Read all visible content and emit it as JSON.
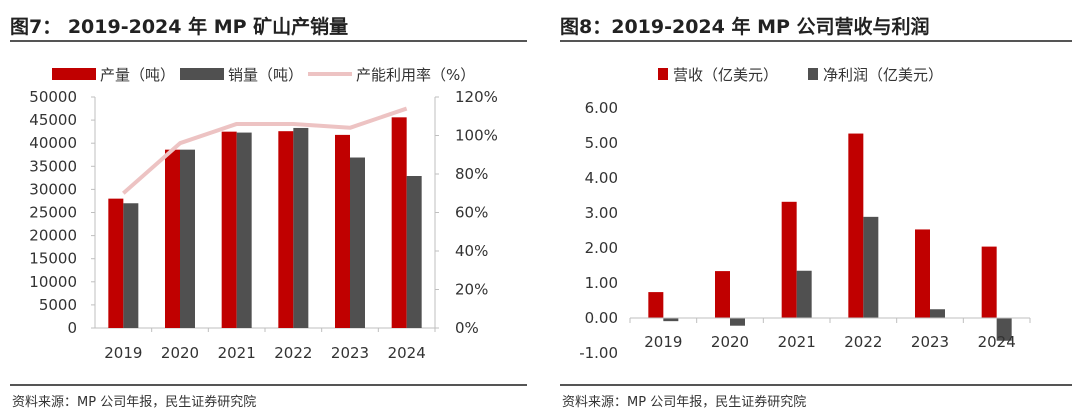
{
  "chart_data": [
    {
      "type": "bar",
      "title": "图7： 2019-2024 年 MP 矿山产销量",
      "categories": [
        "2019",
        "2020",
        "2021",
        "2022",
        "2023",
        "2024"
      ],
      "series": [
        {
          "name": "产量（吨）",
          "type": "bar",
          "axis": "left",
          "color": "#C00000",
          "values": [
            28000,
            38600,
            42500,
            42600,
            41800,
            45600
          ]
        },
        {
          "name": "销量（吨）",
          "type": "bar",
          "axis": "left",
          "color": "#505050",
          "values": [
            27000,
            38600,
            42300,
            43300,
            36900,
            32900
          ]
        },
        {
          "name": "产能利用率（%）",
          "type": "line",
          "axis": "right",
          "color": "#EDC3C3",
          "values": [
            70,
            96,
            106,
            106,
            104,
            114
          ]
        }
      ],
      "y_left": {
        "ylim": [
          0,
          50000
        ],
        "tick_labels": [
          "0",
          "5000",
          "10000",
          "15000",
          "20000",
          "25000",
          "30000",
          "35000",
          "40000",
          "45000",
          "50000"
        ]
      },
      "y_right": {
        "ylim": [
          0,
          120
        ],
        "tick_labels": [
          "0%",
          "20%",
          "40%",
          "60%",
          "80%",
          "100%",
          "120%"
        ]
      },
      "legend": "top",
      "grid": false,
      "source": "资料来源：MP 公司年报，民生证券研究院"
    },
    {
      "type": "bar",
      "title": "图8：2019-2024 年 MP 公司营收与利润",
      "categories": [
        "2019",
        "2020",
        "2021",
        "2022",
        "2023",
        "2024"
      ],
      "series": [
        {
          "name": "营收（亿美元）",
          "color": "#C00000",
          "values": [
            0.74,
            1.34,
            3.32,
            5.27,
            2.53,
            2.04
          ]
        },
        {
          "name": "净利润（亿美元）",
          "color": "#505050",
          "values": [
            -0.09,
            -0.22,
            1.35,
            2.89,
            0.25,
            -0.65
          ]
        }
      ],
      "y": {
        "ylim": [
          -1,
          6
        ],
        "tick_labels": [
          "-1.00",
          "0.00",
          "1.00",
          "2.00",
          "3.00",
          "4.00",
          "5.00",
          "6.00"
        ]
      },
      "legend": "top",
      "grid": false,
      "source": "资料来源：MP 公司年报，民生证券研究院"
    }
  ]
}
